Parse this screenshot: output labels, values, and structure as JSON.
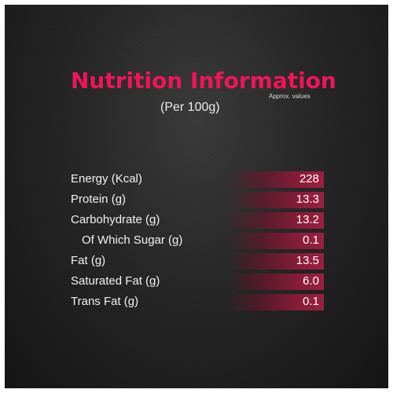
{
  "header": {
    "title": "Nutrition Information",
    "approx_note": "Approx. values",
    "subtitle": "(Per 100g)"
  },
  "nutrients": [
    {
      "label": "Energy (Kcal)",
      "value": "228",
      "indent": false
    },
    {
      "label": "Protein (g)",
      "value": "13.3",
      "indent": false
    },
    {
      "label": "Carbohydrate (g)",
      "value": "13.2",
      "indent": false
    },
    {
      "label": "Of Which Sugar (g)",
      "value": "0.1",
      "indent": true
    },
    {
      "label": "Fat (g)",
      "value": "13.5",
      "indent": false
    },
    {
      "label": "Saturated Fat (g)",
      "value": "6.0",
      "indent": false
    },
    {
      "label": "Trans Fat (g)",
      "value": "0.1",
      "indent": false
    }
  ],
  "colors": {
    "accent": "#f0145a",
    "bar": "#8a1c38",
    "background": "#262626"
  }
}
